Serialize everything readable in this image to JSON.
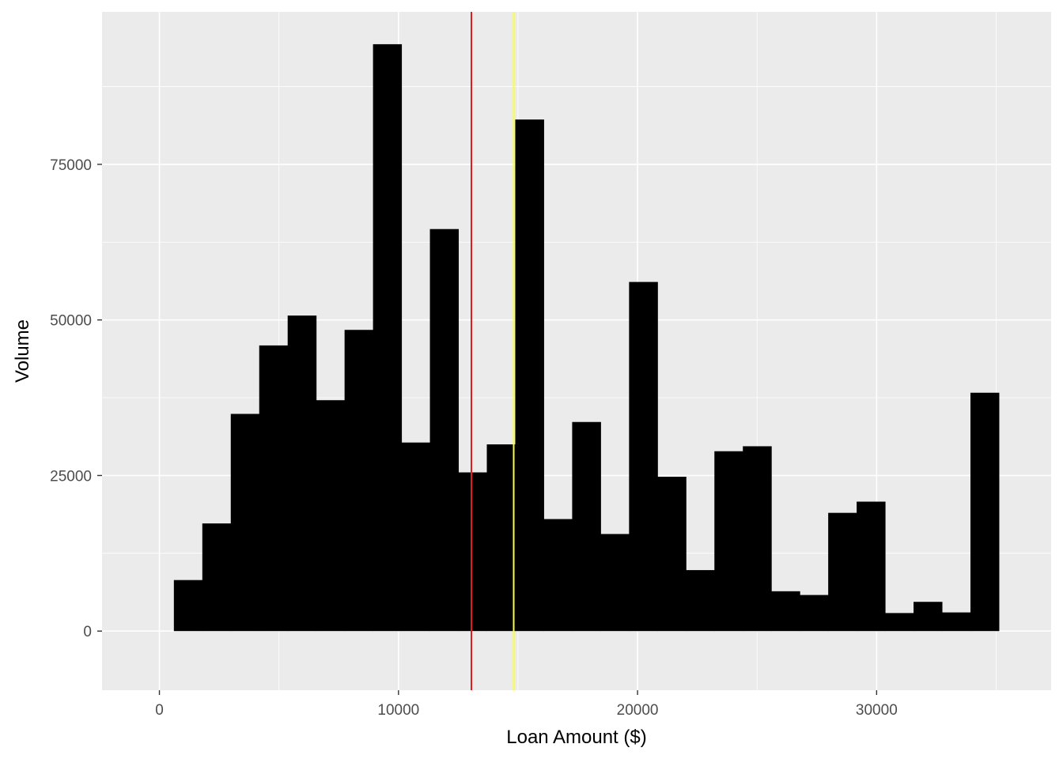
{
  "chart_data": {
    "type": "bar",
    "title": "",
    "xlabel": "Loan Amount ($)",
    "ylabel": "Volume",
    "xlim": [
      -2400,
      37300
    ],
    "ylim": [
      -9500,
      99500
    ],
    "x_ticks": [
      0,
      10000,
      20000,
      30000
    ],
    "x_tick_labels": [
      "0",
      "10000",
      "20000",
      "30000"
    ],
    "y_ticks": [
      0,
      25000,
      50000,
      75000
    ],
    "y_tick_labels": [
      "0",
      "25000",
      "50000",
      "75000"
    ],
    "bin_width": 1190,
    "bin_centers": [
      1200,
      2390,
      3580,
      4770,
      5960,
      7150,
      8340,
      9530,
      10720,
      11910,
      13100,
      14290,
      15480,
      16670,
      17860,
      19050,
      20240,
      21430,
      22620,
      23810,
      25000,
      26190,
      27380,
      28570,
      29760,
      30950,
      32140,
      33330,
      34520
    ],
    "values": [
      8200,
      17300,
      34900,
      45900,
      50700,
      37100,
      48400,
      94300,
      30300,
      64600,
      25500,
      30000,
      82200,
      18000,
      33600,
      15600,
      56100,
      24800,
      9800,
      28900,
      29700,
      6400,
      5800,
      19000,
      20800,
      2900,
      4700,
      3000,
      38300
    ],
    "bar_color": "#000000",
    "vlines": [
      {
        "x": 13050,
        "color": "#E41A1C"
      },
      {
        "x": 14820,
        "color": "#FFFF33"
      }
    ],
    "grid": true,
    "panel_background": "#EBEBEB",
    "grid_color": "#FFFFFF"
  }
}
